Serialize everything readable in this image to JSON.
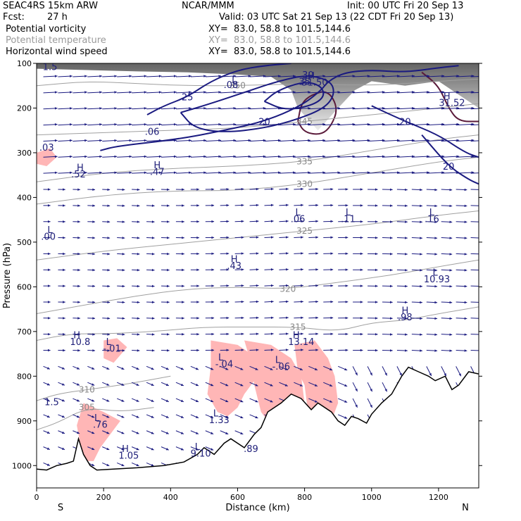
{
  "header": {
    "model": "SEAC4RS 15km ARW",
    "center": "NCAR/MMM",
    "init": "Init: 00 UTC Fri 20 Sep 13",
    "fcst_label": "Fcst:",
    "fcst_value": "27 h",
    "valid": "Valid: 03 UTC Sat 21 Sep 13 (22 CDT Fri 20 Sep 13)",
    "fields": [
      {
        "name": "Potential vorticity",
        "xy": "XY=  83.0, 58.8 to 101.5,144.6",
        "color": "#000000"
      },
      {
        "name": "Potential temperature",
        "xy": "XY=  83.0, 58.8 to 101.5,144.6",
        "color": "#9a9a9a"
      },
      {
        "name": "Horizontal wind speed",
        "xy": "XY=  83.0, 58.8 to 101.5,144.6",
        "color": "#000000"
      }
    ]
  },
  "chart_data": {
    "type": "cross-section",
    "xlabel": "Distance (km)",
    "ylabel": "Pressure (hPa)",
    "xlim": [
      0,
      1320
    ],
    "ylim": [
      1050,
      100
    ],
    "xticks": [
      0,
      200,
      400,
      600,
      800,
      1000,
      1200
    ],
    "yticks": [
      100,
      200,
      300,
      400,
      500,
      600,
      700,
      800,
      900,
      1000
    ],
    "left_end": "S",
    "right_end": "N",
    "colors": {
      "wind": "#1a1a80",
      "theta": "#a0a0a0",
      "pv_shade": "#ffb6b6",
      "pv_line": "#5a1a3a",
      "terrain": "#000000"
    },
    "terrain_pressure": [
      [
        0,
        1008
      ],
      [
        30,
        1010
      ],
      [
        60,
        1000
      ],
      [
        90,
        995
      ],
      [
        110,
        990
      ],
      [
        125,
        940
      ],
      [
        140,
        975
      ],
      [
        160,
        1000
      ],
      [
        180,
        1010
      ],
      [
        230,
        1008
      ],
      [
        300,
        1005
      ],
      [
        380,
        1000
      ],
      [
        440,
        992
      ],
      [
        480,
        975
      ],
      [
        500,
        960
      ],
      [
        530,
        975
      ],
      [
        560,
        950
      ],
      [
        580,
        940
      ],
      [
        620,
        960
      ],
      [
        650,
        930
      ],
      [
        670,
        915
      ],
      [
        690,
        880
      ],
      [
        730,
        860
      ],
      [
        760,
        840
      ],
      [
        790,
        850
      ],
      [
        820,
        875
      ],
      [
        840,
        860
      ],
      [
        880,
        880
      ],
      [
        900,
        900
      ],
      [
        920,
        910
      ],
      [
        940,
        890
      ],
      [
        960,
        895
      ],
      [
        985,
        905
      ],
      [
        1000,
        885
      ],
      [
        1030,
        860
      ],
      [
        1060,
        840
      ],
      [
        1090,
        800
      ],
      [
        1110,
        780
      ],
      [
        1140,
        790
      ],
      [
        1170,
        800
      ],
      [
        1190,
        810
      ],
      [
        1220,
        800
      ],
      [
        1240,
        830
      ],
      [
        1260,
        820
      ],
      [
        1290,
        790
      ],
      [
        1320,
        795
      ]
    ],
    "theta_contours": [
      {
        "label": "305",
        "points": [
          [
            0,
            920
          ],
          [
            60,
            905
          ],
          [
            150,
            870
          ],
          [
            250,
            880
          ],
          [
            350,
            870
          ]
        ]
      },
      {
        "label": "310",
        "points": [
          [
            0,
            855
          ],
          [
            60,
            840
          ],
          [
            150,
            830
          ],
          [
            250,
            820
          ],
          [
            400,
            800
          ]
        ]
      },
      {
        "label": "315",
        "points": [
          [
            0,
            720
          ],
          [
            100,
            705
          ],
          [
            220,
            705
          ],
          [
            350,
            700
          ],
          [
            500,
            690
          ],
          [
            640,
            690
          ],
          [
            780,
            690
          ],
          [
            900,
            700
          ],
          [
            1000,
            680
          ],
          [
            1100,
            675
          ],
          [
            1200,
            660
          ],
          [
            1320,
            645
          ]
        ]
      },
      {
        "label": "320",
        "points": [
          [
            0,
            660
          ],
          [
            150,
            640
          ],
          [
            300,
            620
          ],
          [
            450,
            605
          ],
          [
            600,
            600
          ],
          [
            750,
            605
          ],
          [
            900,
            590
          ],
          [
            1050,
            575
          ],
          [
            1200,
            555
          ],
          [
            1320,
            540
          ]
        ]
      },
      {
        "label": "325",
        "points": [
          [
            0,
            540
          ],
          [
            200,
            520
          ],
          [
            400,
            505
          ],
          [
            600,
            490
          ],
          [
            800,
            475
          ],
          [
            1000,
            460
          ],
          [
            1200,
            440
          ],
          [
            1320,
            430
          ]
        ]
      },
      {
        "label": "330",
        "points": [
          [
            0,
            415
          ],
          [
            200,
            395
          ],
          [
            400,
            385
          ],
          [
            600,
            385
          ],
          [
            800,
            370
          ],
          [
            1000,
            345
          ],
          [
            1200,
            320
          ],
          [
            1320,
            310
          ]
        ]
      },
      {
        "label": "335",
        "points": [
          [
            0,
            365
          ],
          [
            200,
            345
          ],
          [
            400,
            335
          ],
          [
            600,
            330
          ],
          [
            800,
            320
          ],
          [
            1000,
            295
          ],
          [
            1200,
            270
          ],
          [
            1320,
            260
          ]
        ]
      },
      {
        "label": "345",
        "points": [
          [
            0,
            260
          ],
          [
            200,
            255
          ],
          [
            400,
            250
          ],
          [
            600,
            245
          ],
          [
            800,
            230
          ],
          [
            1000,
            215
          ],
          [
            1200,
            200
          ],
          [
            1320,
            190
          ]
        ]
      },
      {
        "label": "350",
        "points": [
          [
            0,
            150
          ],
          [
            150,
            140
          ],
          [
            300,
            145
          ],
          [
            450,
            150
          ],
          [
            600,
            150
          ],
          [
            800,
            145
          ],
          [
            1000,
            150
          ],
          [
            1200,
            140
          ],
          [
            1320,
            135
          ]
        ]
      }
    ],
    "wind_contours": [
      {
        "label": "20",
        "points": [
          [
            190,
            295
          ],
          [
            240,
            285
          ],
          [
            420,
            270
          ],
          [
            560,
            250
          ],
          [
            680,
            230
          ],
          [
            790,
            195
          ],
          [
            850,
            160
          ],
          [
            870,
            140
          ],
          [
            920,
            120
          ],
          [
            1000,
            115
          ],
          [
            1100,
            120
          ],
          [
            1200,
            110
          ],
          [
            1260,
            105
          ]
        ]
      },
      {
        "label": "25",
        "points": [
          [
            330,
            215
          ],
          [
            380,
            195
          ],
          [
            450,
            175
          ],
          [
            520,
            140
          ],
          [
            600,
            115
          ],
          [
            680,
            105
          ],
          [
            760,
            100
          ]
        ]
      },
      {
        "label": "30",
        "points": [
          [
            430,
            210
          ],
          [
            520,
            190
          ],
          [
            640,
            160
          ],
          [
            720,
            140
          ],
          [
            810,
            125
          ],
          [
            880,
            140
          ],
          [
            890,
            170
          ],
          [
            860,
            200
          ],
          [
            780,
            225
          ],
          [
            680,
            245
          ],
          [
            560,
            255
          ],
          [
            470,
            245
          ],
          [
            430,
            210
          ]
        ]
      },
      {
        "label": "35",
        "points": [
          [
            680,
            185
          ],
          [
            720,
            160
          ],
          [
            800,
            140
          ],
          [
            850,
            150
          ],
          [
            860,
            175
          ],
          [
            820,
            195
          ],
          [
            740,
            205
          ],
          [
            680,
            185
          ]
        ]
      },
      {
        "label": "20",
        "points": [
          [
            1000,
            195
          ],
          [
            1100,
            230
          ],
          [
            1200,
            260
          ],
          [
            1280,
            300
          ],
          [
            1320,
            310
          ]
        ]
      },
      {
        "label": "20",
        "points": [
          [
            1150,
            260
          ],
          [
            1230,
            330
          ],
          [
            1290,
            360
          ],
          [
            1320,
            370
          ]
        ]
      }
    ],
    "pv_regions": [
      {
        "points": [
          [
            200,
            720
          ],
          [
            240,
            715
          ],
          [
            270,
            735
          ],
          [
            230,
            770
          ],
          [
            200,
            760
          ]
        ]
      },
      {
        "points": [
          [
            520,
            720
          ],
          [
            600,
            730
          ],
          [
            650,
            755
          ],
          [
            660,
            800
          ],
          [
            620,
            840
          ],
          [
            600,
            870
          ],
          [
            570,
            890
          ],
          [
            540,
            880
          ],
          [
            510,
            840
          ],
          [
            520,
            780
          ]
        ]
      },
      {
        "points": [
          [
            620,
            720
          ],
          [
            700,
            730
          ],
          [
            760,
            760
          ],
          [
            790,
            800
          ],
          [
            800,
            860
          ],
          [
            760,
            880
          ],
          [
            720,
            900
          ],
          [
            690,
            900
          ],
          [
            670,
            880
          ],
          [
            650,
            820
          ],
          [
            640,
            770
          ]
        ]
      },
      {
        "points": [
          [
            770,
            730
          ],
          [
            830,
            720
          ],
          [
            870,
            760
          ],
          [
            890,
            800
          ],
          [
            900,
            860
          ],
          [
            880,
            900
          ],
          [
            830,
            905
          ],
          [
            810,
            880
          ],
          [
            800,
            820
          ],
          [
            780,
            790
          ]
        ]
      },
      {
        "points": [
          [
            140,
            860
          ],
          [
            200,
            880
          ],
          [
            250,
            900
          ],
          [
            220,
            930
          ],
          [
            190,
            960
          ],
          [
            170,
            990
          ],
          [
            140,
            990
          ],
          [
            130,
            950
          ],
          [
            120,
            910
          ]
        ]
      }
    ],
    "labels": [
      {
        "t": "H",
        "x": 130,
        "y": 340
      },
      {
        "t": ".52",
        "x": 125,
        "y": 355
      },
      {
        "t": "H",
        "x": 360,
        "y": 335
      },
      {
        "t": ".47",
        "x": 360,
        "y": 350
      },
      {
        "t": "L",
        "x": 40,
        "y": 480
      },
      {
        "t": ".00",
        "x": 35,
        "y": 495
      },
      {
        "t": "L",
        "x": 780,
        "y": 440
      },
      {
        "t": ".06",
        "x": 780,
        "y": 455
      },
      {
        "t": "L",
        "x": 930,
        "y": 440
      },
      {
        "t": ".11",
        "x": 930,
        "y": 455
      },
      {
        "t": "L",
        "x": 1180,
        "y": 440
      },
      {
        "t": ".16",
        "x": 1180,
        "y": 455
      },
      {
        "t": "H",
        "x": 590,
        "y": 545
      },
      {
        "t": ".43",
        "x": 590,
        "y": 560
      },
      {
        "t": "L",
        "x": 1190,
        "y": 575
      },
      {
        "t": "10.93",
        "x": 1195,
        "y": 590
      },
      {
        "t": "H",
        "x": 1100,
        "y": 660
      },
      {
        "t": ".98",
        "x": 1100,
        "y": 675
      },
      {
        "t": "H",
        "x": 120,
        "y": 715
      },
      {
        "t": "10.8",
        "x": 130,
        "y": 730
      },
      {
        "t": "L",
        "x": 215,
        "y": 730
      },
      {
        "t": "-.01",
        "x": 225,
        "y": 745
      },
      {
        "t": "H",
        "x": 775,
        "y": 715
      },
      {
        "t": "13.14",
        "x": 790,
        "y": 730
      },
      {
        "t": "L",
        "x": 550,
        "y": 765
      },
      {
        "t": "-.04",
        "x": 560,
        "y": 780
      },
      {
        "t": "L",
        "x": 720,
        "y": 770
      },
      {
        "t": "-.06",
        "x": 730,
        "y": 785
      },
      {
        "t": "L",
        "x": 535,
        "y": 890
      },
      {
        "t": "1.33",
        "x": 545,
        "y": 905
      },
      {
        "t": "L",
        "x": 180,
        "y": 900
      },
      {
        "t": ".76",
        "x": 190,
        "y": 915
      },
      {
        "t": "H",
        "x": 265,
        "y": 970
      },
      {
        "t": "1.05",
        "x": 275,
        "y": 985
      },
      {
        "t": "L",
        "x": 480,
        "y": 965
      },
      {
        "t": "9.10",
        "x": 490,
        "y": 980
      },
      {
        "t": ".89",
        "x": 640,
        "y": 970
      },
      {
        "t": "1.5",
        "x": 45,
        "y": 865
      },
      {
        "t": "1.5",
        "x": 40,
        "y": 115
      },
      {
        "t": ".03",
        "x": 30,
        "y": 295
      },
      {
        "t": "H",
        "x": 820,
        "y": 135
      },
      {
        "t": "31.50",
        "x": 830,
        "y": 150
      },
      {
        "t": "H",
        "x": 1225,
        "y": 180
      },
      {
        "t": "31.52",
        "x": 1240,
        "y": 195
      },
      {
        "t": ".08",
        "x": 580,
        "y": 155
      },
      {
        "t": ".06",
        "x": 345,
        "y": 260
      },
      {
        "t": "L",
        "x": 590,
        "y": 145
      }
    ]
  }
}
